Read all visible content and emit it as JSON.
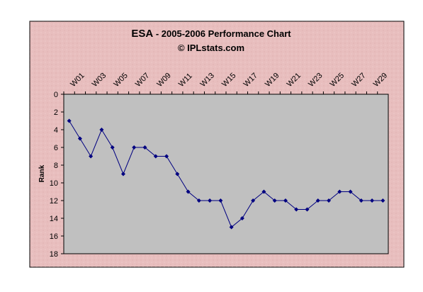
{
  "chart_data": {
    "type": "line",
    "team": "ESA",
    "title": "- 2005-2006 Performance Chart",
    "subtitle": "© IPLstats.com",
    "y_label": "Rank",
    "categories": [
      "W01",
      null,
      "W03",
      null,
      "W05",
      null,
      "W07",
      null,
      "W09",
      null,
      "W11",
      null,
      "W13",
      null,
      "W15",
      null,
      "W17",
      null,
      "W19",
      null,
      "W21",
      null,
      "W23",
      null,
      "W25",
      null,
      "W27",
      null,
      "W29",
      null
    ],
    "series": [
      {
        "name": "Rank",
        "color": "#000080",
        "values": [
          3,
          5,
          7,
          4,
          6,
          9,
          6,
          6,
          7,
          7,
          9,
          11,
          12,
          12,
          12,
          15,
          14,
          12,
          11,
          12,
          12,
          13,
          13,
          12,
          12,
          11,
          11,
          12,
          12,
          12
        ]
      }
    ],
    "ylim": [
      0,
      18
    ],
    "y_inverted": true,
    "yticks": [
      0,
      2,
      4,
      6,
      8,
      10,
      12,
      14,
      16,
      18
    ],
    "plot_color": "#c0c0c0",
    "background_color": "#e8bebe"
  }
}
